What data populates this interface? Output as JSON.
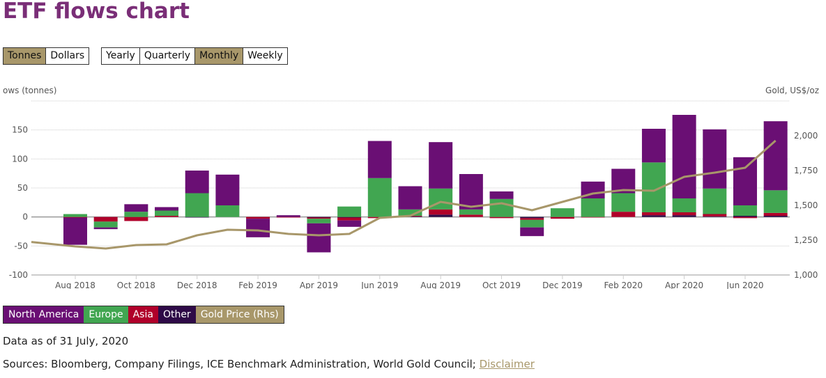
{
  "header": {
    "title": "ETF flows chart"
  },
  "unit_toggle": [
    {
      "label": "Tonnes",
      "active": true
    },
    {
      "label": "Dollars",
      "active": false
    }
  ],
  "period_toggle": [
    {
      "label": "Yearly",
      "active": false
    },
    {
      "label": "Quarterly",
      "active": false
    },
    {
      "label": "Monthly",
      "active": true
    },
    {
      "label": "Weekly",
      "active": false
    }
  ],
  "legend": [
    {
      "label": "North America",
      "color": "#6a0f74"
    },
    {
      "label": "Europe",
      "color": "#41a651"
    },
    {
      "label": "Asia",
      "color": "#b0002a"
    },
    {
      "label": "Other",
      "color": "#2e0a47"
    },
    {
      "label": "Gold Price (Rhs)",
      "color": "#a8976a"
    }
  ],
  "footer": {
    "as_of": "Data as of 31 July, 2020",
    "sources": "Sources: Bloomberg, Company Filings, ICE Benchmark Administration, World Gold Council;",
    "disclaimer": "Disclaimer"
  },
  "chart_data": {
    "type": "bar",
    "stacked": true,
    "title": "ETF flows chart",
    "ylabel": "ows (tonnes)",
    "y2label": "Gold, US$/oz",
    "ylim": [
      -100,
      200
    ],
    "yticks": [
      -100,
      -50,
      0,
      50,
      100,
      150
    ],
    "ytick_labels": [
      "-100",
      "-50",
      "0",
      "50",
      "100",
      "150"
    ],
    "y2lim": [
      1000,
      2000
    ],
    "y2ticks": [
      1000,
      1250,
      1500,
      1750,
      2000
    ],
    "y2tick_labels": [
      "1,000",
      "1,250",
      "1,500",
      "1,750",
      "2,000"
    ],
    "grid": true,
    "legend_position": "bottom-left",
    "categories": [
      "Aug 2018",
      "Sep 2018",
      "Oct 2018",
      "Nov 2018",
      "Dec 2018",
      "Jan 2019",
      "Feb 2019",
      "Mar 2019",
      "Apr 2019",
      "May 2019",
      "Jun 2019",
      "Jul 2019",
      "Aug 2019",
      "Sep 2019",
      "Oct 2019",
      "Nov 2019",
      "Dec 2019",
      "Jan 2020",
      "Feb 2020",
      "Mar 2020",
      "Apr 2020",
      "May 2020",
      "Jun 2020",
      "Jul 2020"
    ],
    "xtick_labels": [
      "Aug 2018",
      "Oct 2018",
      "Dec 2018",
      "Feb 2019",
      "Apr 2019",
      "Jun 2019",
      "Aug 2019",
      "Oct 2019",
      "Dec 2019",
      "Feb 2020",
      "Apr 2020",
      "Jun 2020"
    ],
    "series": [
      {
        "name": "Other",
        "color": "#2e0a47",
        "values": [
          0,
          0,
          0,
          0,
          -1,
          0,
          0,
          0,
          -1,
          -1,
          0,
          1,
          4,
          0,
          0,
          -2,
          0,
          0,
          0,
          3,
          3,
          1,
          2,
          2
        ]
      },
      {
        "name": "Asia",
        "color": "#b0002a",
        "values": [
          -1,
          -8,
          -7,
          2,
          0,
          0,
          -3,
          -1,
          -2,
          -5,
          -2,
          1,
          9,
          4,
          -2,
          -3,
          -3,
          -1,
          9,
          5,
          5,
          4,
          -2,
          5
        ]
      },
      {
        "name": "Europe",
        "color": "#41a651",
        "values": [
          5,
          -10,
          9,
          9,
          41,
          20,
          0,
          0,
          -8,
          18,
          67,
          11,
          36,
          9,
          31,
          -13,
          15,
          32,
          32,
          86,
          24,
          44,
          18,
          39
        ]
      },
      {
        "name": "North America",
        "color": "#6a0f74",
        "values": [
          -47,
          -3,
          13,
          6,
          39,
          53,
          -32,
          3,
          -50,
          -11,
          64,
          40,
          80,
          61,
          13,
          -15,
          0,
          29,
          42,
          58,
          144,
          102,
          83,
          119
        ]
      }
    ],
    "line_series": {
      "name": "Gold Price (Rhs)",
      "color": "#a8976a",
      "axis": "right",
      "x": [
        "Jul 2018",
        "Aug 2018",
        "Sep 2018",
        "Oct 2018",
        "Nov 2018",
        "Dec 2018",
        "Jan 2019",
        "Feb 2019",
        "Mar 2019",
        "Apr 2019",
        "May 2019",
        "Jun 2019",
        "Jul 2019",
        "Aug 2019",
        "Sep 2019",
        "Oct 2019",
        "Nov 2019",
        "Dec 2019",
        "Jan 2020",
        "Feb 2020",
        "Mar 2020",
        "Apr 2020",
        "May 2020",
        "Jun 2020",
        "Jul 2020"
      ],
      "values": [
        1237,
        1205,
        1190,
        1215,
        1220,
        1285,
        1325,
        1320,
        1295,
        1285,
        1295,
        1410,
        1425,
        1525,
        1490,
        1515,
        1465,
        1525,
        1585,
        1610,
        1605,
        1705,
        1735,
        1770,
        1965
      ]
    }
  }
}
